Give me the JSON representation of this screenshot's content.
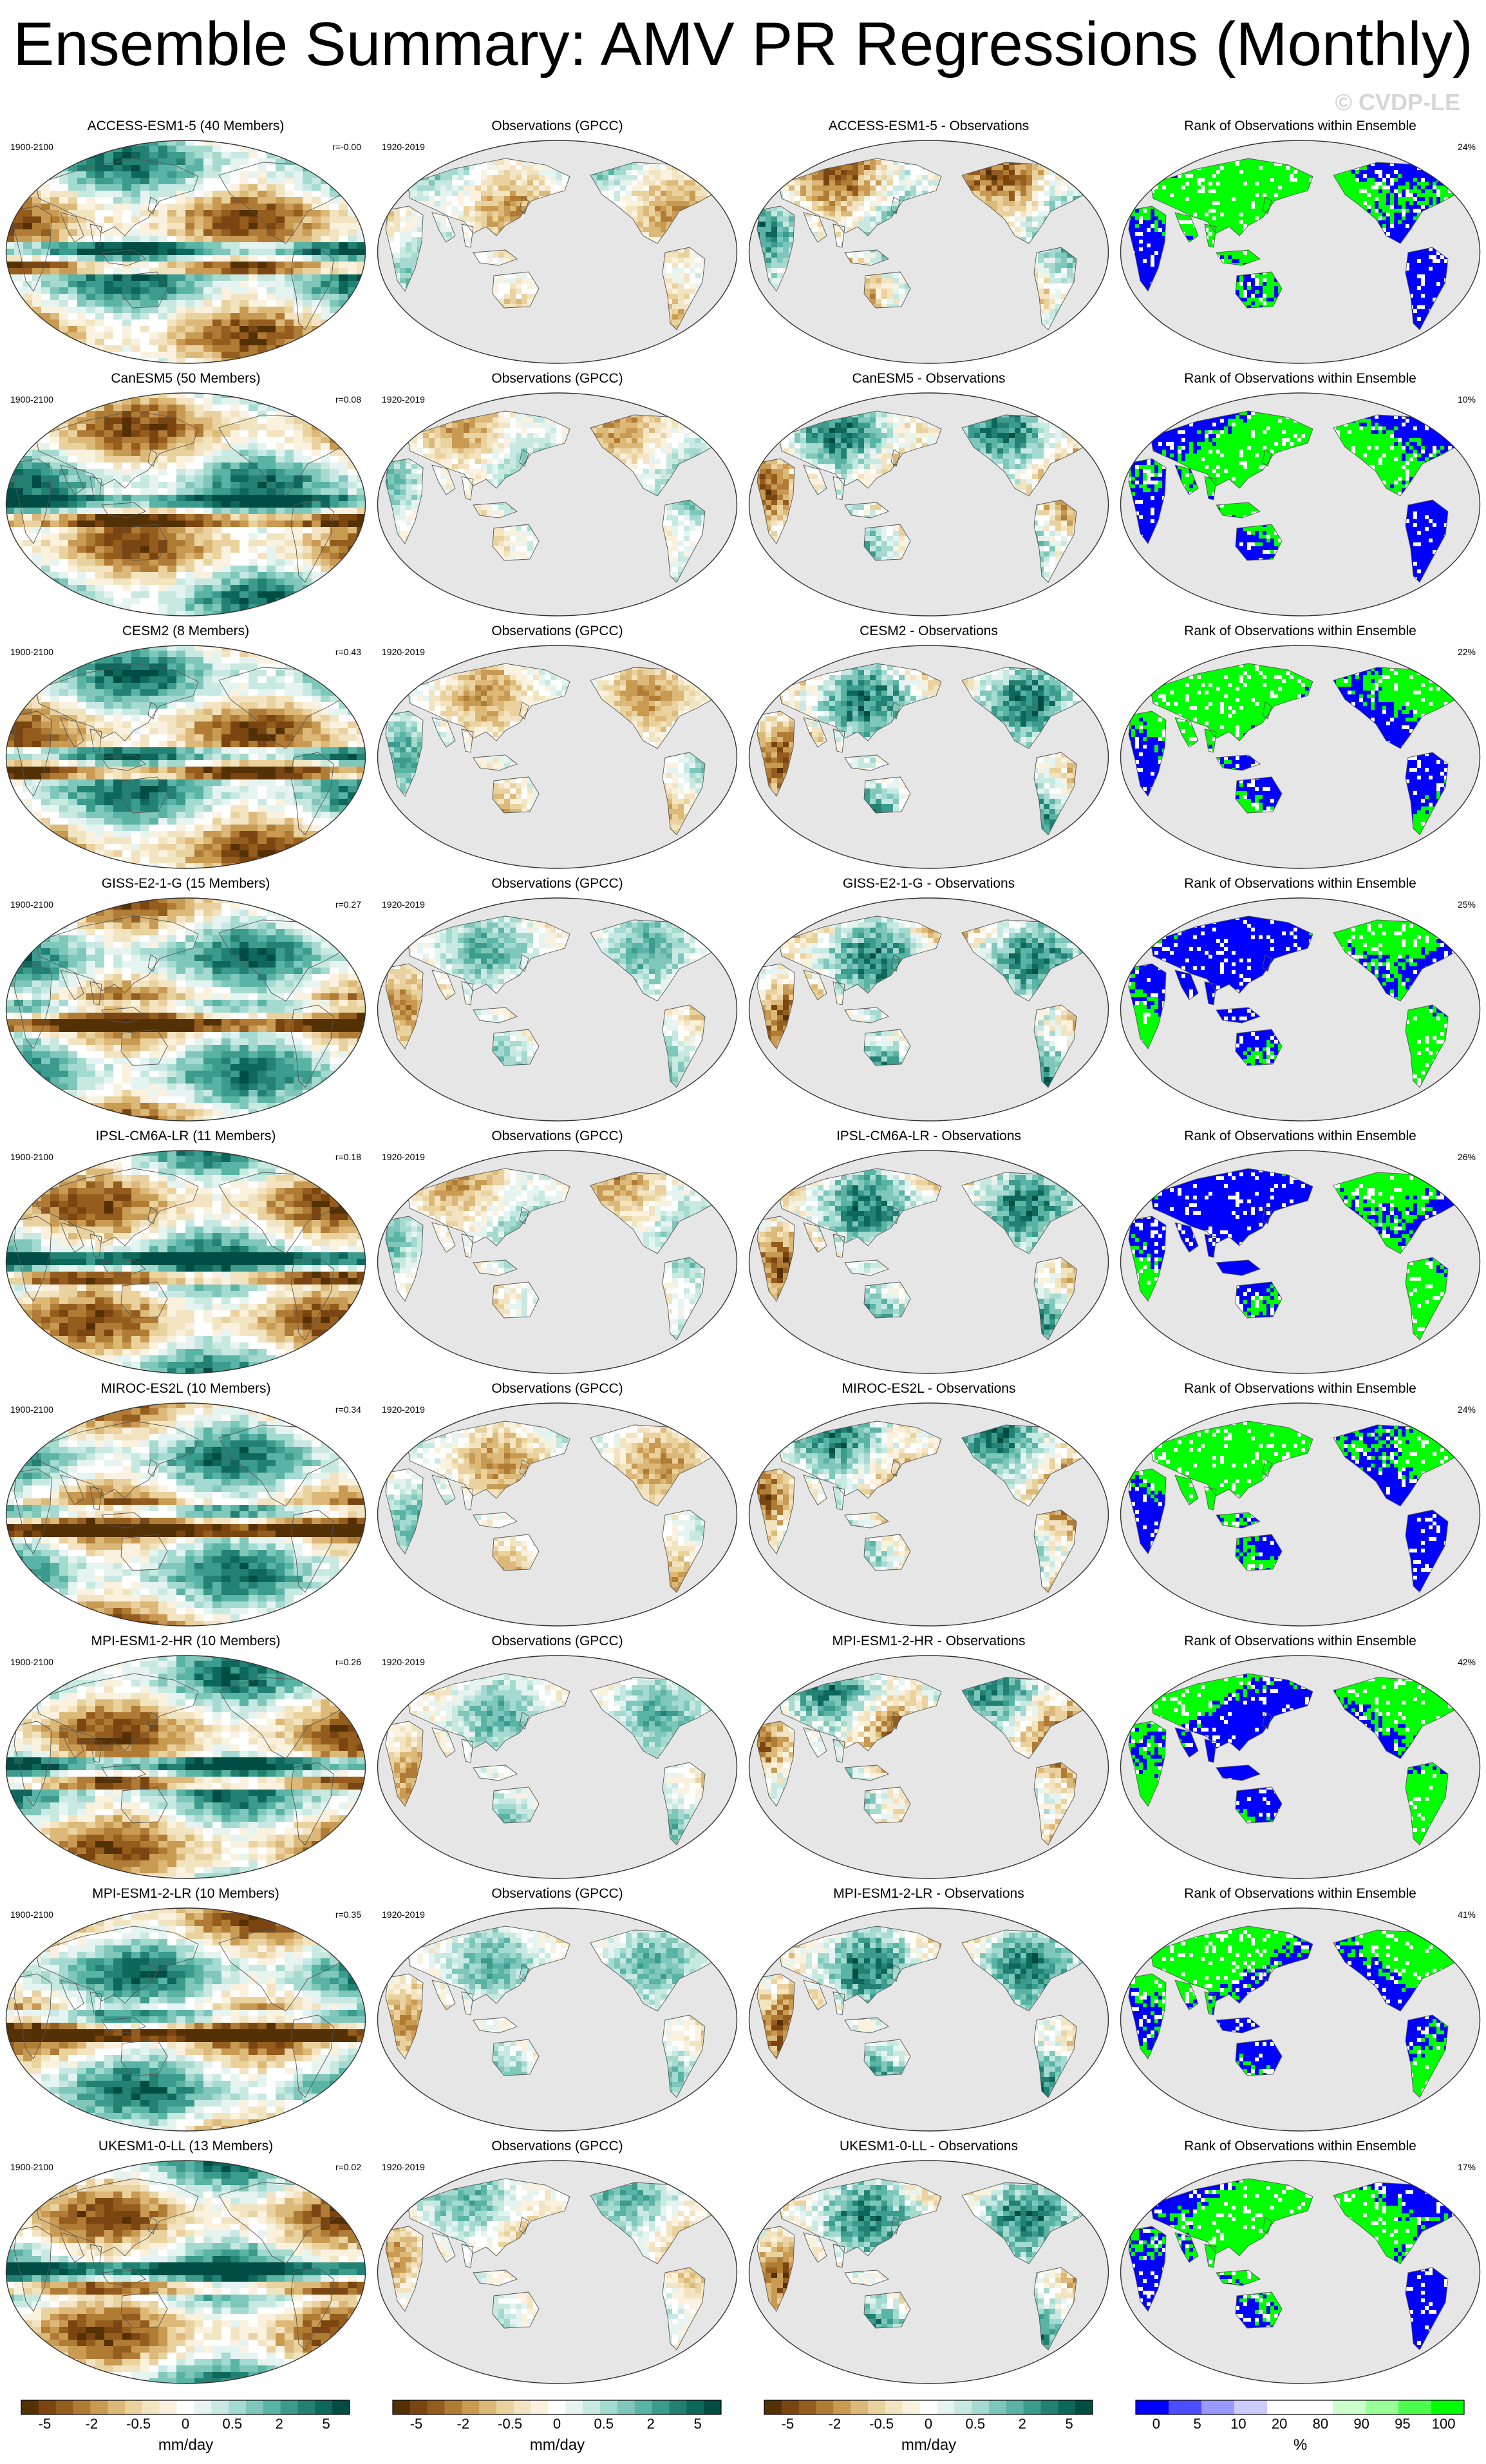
{
  "title": "Ensemble Summary: AMV PR Regressions (Monthly)",
  "watermark": "© CVDP-LE",
  "colors": {
    "land": "#ececec",
    "ocean": "#e6e6e6",
    "outline": "#555555",
    "brown_dark": "#8c510a",
    "tan": "#e2c98f",
    "teal": "#5ab4ac",
    "teal_dark": "#01665e",
    "rank_blue": "#0000ff",
    "rank_green": "#00ff00"
  },
  "rows": [
    {
      "model": "ACCESS-ESM1-5 (40 Members)",
      "period": "1900-2100",
      "r": "r=-0.00",
      "obs_title": "Observations (GPCC)",
      "obs_period": "1920-2019",
      "diff_title": "ACCESS-ESM1-5 - Observations",
      "rank_title": "Rank of Observations within Ensemble",
      "rank_pct": "24%"
    },
    {
      "model": "CanESM5 (50 Members)",
      "period": "1900-2100",
      "r": "r=0.08",
      "obs_title": "Observations (GPCC)",
      "obs_period": "1920-2019",
      "diff_title": "CanESM5 - Observations",
      "rank_title": "Rank of Observations within Ensemble",
      "rank_pct": "10%"
    },
    {
      "model": "CESM2 (8 Members)",
      "period": "1900-2100",
      "r": "r=0.43",
      "obs_title": "Observations (GPCC)",
      "obs_period": "1920-2019",
      "diff_title": "CESM2 - Observations",
      "rank_title": "Rank of Observations within Ensemble",
      "rank_pct": "22%"
    },
    {
      "model": "GISS-E2-1-G (15 Members)",
      "period": "1900-2100",
      "r": "r=0.27",
      "obs_title": "Observations (GPCC)",
      "obs_period": "1920-2019",
      "diff_title": "GISS-E2-1-G - Observations",
      "rank_title": "Rank of Observations within Ensemble",
      "rank_pct": "25%"
    },
    {
      "model": "IPSL-CM6A-LR (11 Members)",
      "period": "1900-2100",
      "r": "r=0.18",
      "obs_title": "Observations (GPCC)",
      "obs_period": "1920-2019",
      "diff_title": "IPSL-CM6A-LR - Observations",
      "rank_title": "Rank of Observations within Ensemble",
      "rank_pct": "26%"
    },
    {
      "model": "MIROC-ES2L (10 Members)",
      "period": "1900-2100",
      "r": "r=0.34",
      "obs_title": "Observations (GPCC)",
      "obs_period": "1920-2019",
      "diff_title": "MIROC-ES2L - Observations",
      "rank_title": "Rank of Observations within Ensemble",
      "rank_pct": "24%"
    },
    {
      "model": "MPI-ESM1-2-HR (10 Members)",
      "period": "1900-2100",
      "r": "r=0.26",
      "obs_title": "Observations (GPCC)",
      "obs_period": "1920-2019",
      "diff_title": "MPI-ESM1-2-HR - Observations",
      "rank_title": "Rank of Observations within Ensemble",
      "rank_pct": "42%"
    },
    {
      "model": "MPI-ESM1-2-LR (10 Members)",
      "period": "1900-2100",
      "r": "r=0.35",
      "obs_title": "Observations (GPCC)",
      "obs_period": "1920-2019",
      "diff_title": "MPI-ESM1-2-LR - Observations",
      "rank_title": "Rank of Observations within Ensemble",
      "rank_pct": "41%"
    },
    {
      "model": "UKESM1-0-LL (13 Members)",
      "period": "1900-2100",
      "r": "r=0.02",
      "obs_title": "Observations (GPCC)",
      "obs_period": "1920-2019",
      "diff_title": "UKESM1-0-LL - Observations",
      "rank_title": "Rank of Observations within Ensemble",
      "rank_pct": "17%"
    }
  ],
  "colorbars": [
    {
      "units": "mm/day",
      "labels": [
        "-5",
        "-2",
        "-0.5",
        "0",
        "0.5",
        "2",
        "5"
      ],
      "colors": [
        "#543005",
        "#7a4510",
        "#955d1d",
        "#b07c35",
        "#c89a52",
        "#dcb978",
        "#ead29e",
        "#f3e4c1",
        "#faf2df",
        "#ffffff",
        "#e5f4f1",
        "#c7e9e2",
        "#a4dad0",
        "#7fc7ba",
        "#5ab4a5",
        "#3b9b8c",
        "#228173",
        "#0e675b",
        "#014d44"
      ]
    },
    {
      "units": "mm/day",
      "labels": [
        "-5",
        "-2",
        "-0.5",
        "0",
        "0.5",
        "2",
        "5"
      ],
      "colors": [
        "#543005",
        "#7a4510",
        "#955d1d",
        "#b07c35",
        "#c89a52",
        "#dcb978",
        "#ead29e",
        "#f3e4c1",
        "#faf2df",
        "#ffffff",
        "#e5f4f1",
        "#c7e9e2",
        "#a4dad0",
        "#7fc7ba",
        "#5ab4a5",
        "#3b9b8c",
        "#228173",
        "#0e675b",
        "#014d44"
      ]
    },
    {
      "units": "mm/day",
      "labels": [
        "-5",
        "-2",
        "-0.5",
        "0",
        "0.5",
        "2",
        "5"
      ],
      "colors": [
        "#543005",
        "#7a4510",
        "#955d1d",
        "#b07c35",
        "#c89a52",
        "#dcb978",
        "#ead29e",
        "#f3e4c1",
        "#faf2df",
        "#ffffff",
        "#e5f4f1",
        "#c7e9e2",
        "#a4dad0",
        "#7fc7ba",
        "#5ab4a5",
        "#3b9b8c",
        "#228173",
        "#0e675b",
        "#014d44"
      ]
    },
    {
      "units": "%",
      "labels": [
        "0",
        "5",
        "10",
        "20",
        "80",
        "90",
        "95",
        "100"
      ],
      "colors": [
        "#0000ff",
        "#4d4dff",
        "#9999ff",
        "#ccccff",
        "#ffffff",
        "#ffffff",
        "#ccffcc",
        "#99ff99",
        "#4dff4d",
        "#00ff00"
      ]
    }
  ]
}
